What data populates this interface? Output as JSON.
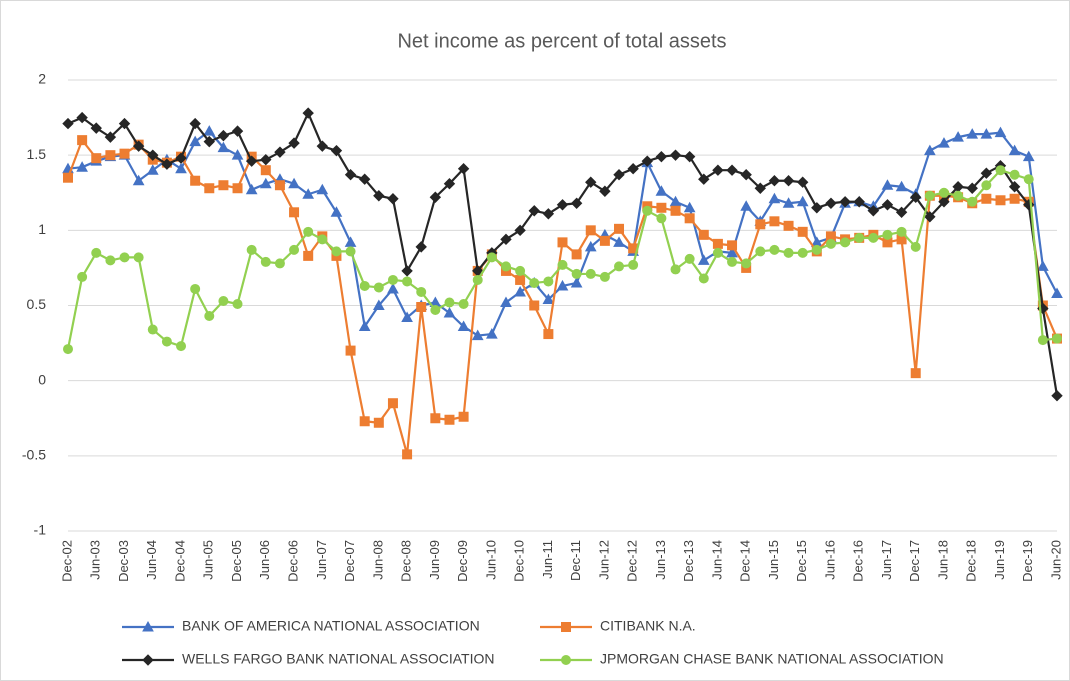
{
  "chart_data": {
    "type": "line",
    "title": "Net income as percent of total assets",
    "categories": [
      "Dec-02",
      null,
      "Jun-03",
      null,
      "Dec-03",
      null,
      "Jun-04",
      null,
      "Dec-04",
      null,
      "Jun-05",
      null,
      "Dec-05",
      null,
      "Jun-06",
      null,
      "Dec-06",
      null,
      "Jun-07",
      null,
      "Dec-07",
      null,
      "Jun-08",
      null,
      "Dec-08",
      null,
      "Jun-09",
      null,
      "Dec-09",
      null,
      "Jun-10",
      null,
      "Dec-10",
      null,
      "Jun-11",
      null,
      "Dec-11",
      null,
      "Jun-12",
      null,
      "Dec-12",
      null,
      "Jun-13",
      null,
      "Dec-13",
      null,
      "Jun-14",
      null,
      "Dec-14",
      null,
      "Jun-15",
      null,
      "Dec-15",
      null,
      "Jun-16",
      null,
      "Dec-16",
      null,
      "Jun-17",
      null,
      "Dec-17",
      null,
      "Jun-18",
      null,
      "Dec-18",
      null,
      "Jun-19",
      null,
      "Dec-19",
      null,
      "Jun-20"
    ],
    "series": [
      {
        "name": "BANK OF AMERICA NATIONAL ASSOCIATION",
        "color": "#4472c4",
        "marker": "triangle",
        "values": [
          1.41,
          1.42,
          1.46,
          1.49,
          1.5,
          1.33,
          1.4,
          1.47,
          1.41,
          1.59,
          1.66,
          1.55,
          1.5,
          1.27,
          1.31,
          1.34,
          1.31,
          1.24,
          1.27,
          1.12,
          0.92,
          0.36,
          0.5,
          0.61,
          0.42,
          0.5,
          0.52,
          0.45,
          0.36,
          0.3,
          0.31,
          0.52,
          0.59,
          0.65,
          0.54,
          0.63,
          0.65,
          0.89,
          0.97,
          0.92,
          0.86,
          1.45,
          1.26,
          1.19,
          1.15,
          0.8,
          0.86,
          0.85,
          1.16,
          1.06,
          1.21,
          1.18,
          1.19,
          0.92,
          0.95,
          1.18,
          1.19,
          1.16,
          1.3,
          1.29,
          1.24,
          1.53,
          1.58,
          1.62,
          1.64,
          1.64,
          1.65,
          1.53,
          1.49,
          0.76,
          0.58
        ]
      },
      {
        "name": "CITIBANK N.A.",
        "color": "#ed7d31",
        "marker": "square",
        "values": [
          1.35,
          1.6,
          1.48,
          1.5,
          1.51,
          1.57,
          1.47,
          1.45,
          1.49,
          1.33,
          1.28,
          1.3,
          1.28,
          1.49,
          1.4,
          1.3,
          1.12,
          0.83,
          0.96,
          0.83,
          0.2,
          -0.27,
          -0.28,
          -0.15,
          -0.49,
          0.49,
          -0.25,
          -0.26,
          -0.24,
          0.73,
          0.84,
          0.73,
          0.67,
          0.5,
          0.31,
          0.92,
          0.84,
          1.0,
          0.93,
          1.01,
          0.88,
          1.16,
          1.15,
          1.13,
          1.08,
          0.97,
          0.91,
          0.9,
          0.75,
          1.04,
          1.06,
          1.03,
          0.99,
          0.86,
          0.96,
          0.94,
          0.95,
          0.97,
          0.92,
          0.94,
          0.05,
          1.23,
          1.23,
          1.22,
          1.18,
          1.21,
          1.2,
          1.21,
          1.19,
          0.5,
          0.28
        ]
      },
      {
        "name": "WELLS FARGO BANK NATIONAL ASSOCIATION",
        "color": "#262626",
        "marker": "diamond",
        "values": [
          1.71,
          1.75,
          1.68,
          1.62,
          1.71,
          1.56,
          1.5,
          1.44,
          1.48,
          1.71,
          1.59,
          1.63,
          1.66,
          1.46,
          1.47,
          1.52,
          1.58,
          1.78,
          1.56,
          1.53,
          1.37,
          1.34,
          1.23,
          1.21,
          0.73,
          0.89,
          1.22,
          1.31,
          1.41,
          0.73,
          0.85,
          0.94,
          1.0,
          1.13,
          1.11,
          1.17,
          1.18,
          1.32,
          1.26,
          1.37,
          1.41,
          1.46,
          1.49,
          1.5,
          1.49,
          1.34,
          1.4,
          1.4,
          1.37,
          1.28,
          1.33,
          1.33,
          1.32,
          1.15,
          1.18,
          1.19,
          1.19,
          1.13,
          1.17,
          1.12,
          1.22,
          1.09,
          1.19,
          1.29,
          1.28,
          1.38,
          1.43,
          1.29,
          1.17,
          0.48,
          -0.1
        ]
      },
      {
        "name": "JPMORGAN CHASE BANK NATIONAL ASSOCIATION",
        "color": "#92d050",
        "marker": "circle",
        "values": [
          0.21,
          0.69,
          0.85,
          0.8,
          0.82,
          0.82,
          0.34,
          0.26,
          0.23,
          0.61,
          0.43,
          0.53,
          0.51,
          0.87,
          0.79,
          0.78,
          0.87,
          0.99,
          0.94,
          0.86,
          0.86,
          0.63,
          0.62,
          0.67,
          0.66,
          0.59,
          0.47,
          0.52,
          0.51,
          0.67,
          0.82,
          0.76,
          0.73,
          0.65,
          0.66,
          0.77,
          0.71,
          0.71,
          0.69,
          0.76,
          0.77,
          1.13,
          1.08,
          0.74,
          0.81,
          0.68,
          0.85,
          0.79,
          0.78,
          0.86,
          0.87,
          0.85,
          0.85,
          0.87,
          0.91,
          0.92,
          0.95,
          0.95,
          0.97,
          0.99,
          0.89,
          1.23,
          1.25,
          1.23,
          1.19,
          1.3,
          1.4,
          1.37,
          1.34,
          0.27,
          0.28
        ]
      }
    ],
    "ylim": [
      -1,
      2
    ],
    "yticks": [
      -1,
      -0.5,
      0,
      0.5,
      1,
      1.5,
      2
    ],
    "grid": true,
    "legend": "bottom"
  }
}
